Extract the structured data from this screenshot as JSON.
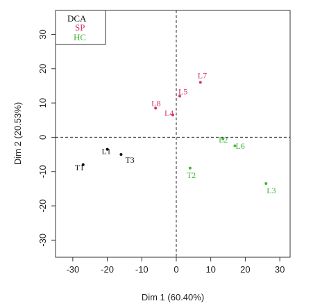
{
  "chart_data": {
    "type": "scatter",
    "title": "",
    "xlabel": "Dim 1 (60.40%)",
    "ylabel": "Dim 2 (20.53%)",
    "xlim": [
      -35,
      33
    ],
    "ylim": [
      -35,
      37
    ],
    "x_ticks": [
      -30,
      -20,
      -10,
      0,
      10,
      20,
      30
    ],
    "y_ticks": [
      -30,
      -20,
      -10,
      0,
      10,
      20,
      30
    ],
    "reference_lines": {
      "x": 0,
      "y": 0,
      "style": "dashed"
    },
    "legend": {
      "position": "top-left",
      "entries": [
        {
          "label": "DCA",
          "color": "#111111"
        },
        {
          "label": "SP",
          "color": "#d6336c"
        },
        {
          "label": "HC",
          "color": "#44b53a"
        }
      ]
    },
    "series": [
      {
        "name": "DCA",
        "color": "#111111",
        "points": [
          {
            "label": "T1",
            "x": -27,
            "y": -8
          },
          {
            "label": "L1",
            "x": -20,
            "y": -3.5
          },
          {
            "label": "T3",
            "x": -16,
            "y": -5
          }
        ]
      },
      {
        "name": "SP",
        "color": "#d6336c",
        "points": [
          {
            "label": "L7",
            "x": 7,
            "y": 16
          },
          {
            "label": "L5",
            "x": 1,
            "y": 12
          },
          {
            "label": "L8",
            "x": -6,
            "y": 8.5
          },
          {
            "label": "L4",
            "x": -1,
            "y": 6.5
          }
        ]
      },
      {
        "name": "HC",
        "color": "#44b53a",
        "points": [
          {
            "label": "L2",
            "x": 13.5,
            "y": -0.5
          },
          {
            "label": "L6",
            "x": 17,
            "y": -2.5
          },
          {
            "label": "T2",
            "x": 4,
            "y": -9
          },
          {
            "label": "L3",
            "x": 26,
            "y": -13.5
          }
        ]
      }
    ]
  }
}
